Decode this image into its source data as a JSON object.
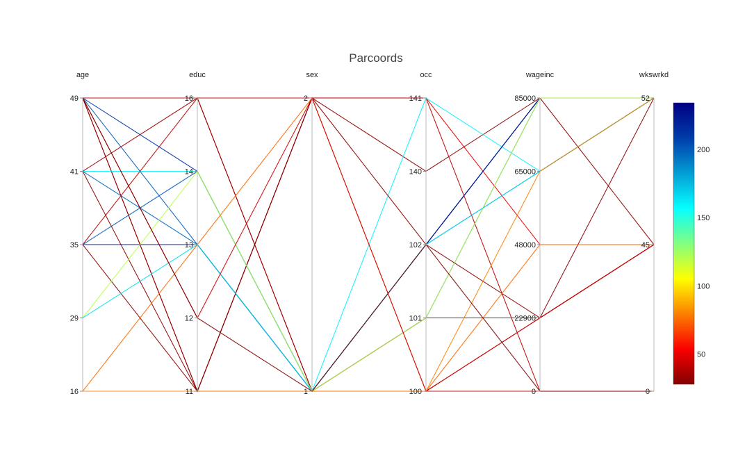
{
  "chart_data": {
    "type": "parcoords",
    "title": "Parcoords",
    "dimensions": [
      {
        "label": "age",
        "ticks": [
          16,
          29,
          35,
          41,
          49
        ]
      },
      {
        "label": "educ",
        "ticks": [
          11,
          12,
          13,
          14,
          16
        ]
      },
      {
        "label": "sex",
        "ticks": [
          1,
          2
        ]
      },
      {
        "label": "occ",
        "ticks": [
          100,
          101,
          102,
          140,
          141
        ]
      },
      {
        "label": "wageinc",
        "ticks": [
          0,
          22900,
          48000,
          65000,
          85000
        ]
      },
      {
        "label": "wkswrkd",
        "ticks": [
          0,
          45,
          52
        ]
      }
    ],
    "records": [
      {
        "values": [
          49,
          16,
          1,
          100,
          0,
          0
        ],
        "color": 40
      },
      {
        "values": [
          49,
          14,
          1,
          102,
          85000,
          52
        ],
        "color": 210
      },
      {
        "values": [
          49,
          13,
          1,
          101,
          85000,
          52
        ],
        "color": 200
      },
      {
        "values": [
          49,
          11,
          2,
          141,
          48000,
          45
        ],
        "color": 50
      },
      {
        "values": [
          49,
          11,
          2,
          140,
          85000,
          45
        ],
        "color": 30
      },
      {
        "values": [
          41,
          16,
          1,
          100,
          22900,
          45
        ],
        "color": 35
      },
      {
        "values": [
          41,
          14,
          1,
          141,
          65000,
          52
        ],
        "color": 160
      },
      {
        "values": [
          41,
          13,
          1,
          102,
          65000,
          52
        ],
        "color": 195
      },
      {
        "values": [
          41,
          11,
          2,
          102,
          22900,
          52
        ],
        "color": 30
      },
      {
        "values": [
          35,
          16,
          2,
          141,
          0,
          0
        ],
        "color": 40
      },
      {
        "values": [
          35,
          14,
          1,
          102,
          85000,
          52
        ],
        "color": 200
      },
      {
        "values": [
          35,
          13,
          1,
          102,
          85000,
          52
        ],
        "color": 230
      },
      {
        "values": [
          35,
          11,
          1,
          101,
          22900,
          45
        ],
        "color": 30
      },
      {
        "values": [
          29,
          14,
          1,
          101,
          85000,
          52
        ],
        "color": 120
      },
      {
        "values": [
          29,
          13,
          1,
          102,
          65000,
          52
        ],
        "color": 165
      },
      {
        "values": [
          16,
          13,
          2,
          100,
          48000,
          45
        ],
        "color": 75
      },
      {
        "values": [
          16,
          11,
          1,
          100,
          65000,
          52
        ],
        "color": 80
      },
      {
        "values": [
          49,
          12,
          2,
          100,
          22900,
          45
        ],
        "color": 45
      },
      {
        "values": [
          49,
          12,
          1,
          102,
          0,
          0
        ],
        "color": 28
      }
    ],
    "colorscale": "Jet (reversed)",
    "colorbar": {
      "range": [
        28,
        234
      ],
      "ticks": [
        50,
        100,
        150,
        200
      ]
    }
  }
}
